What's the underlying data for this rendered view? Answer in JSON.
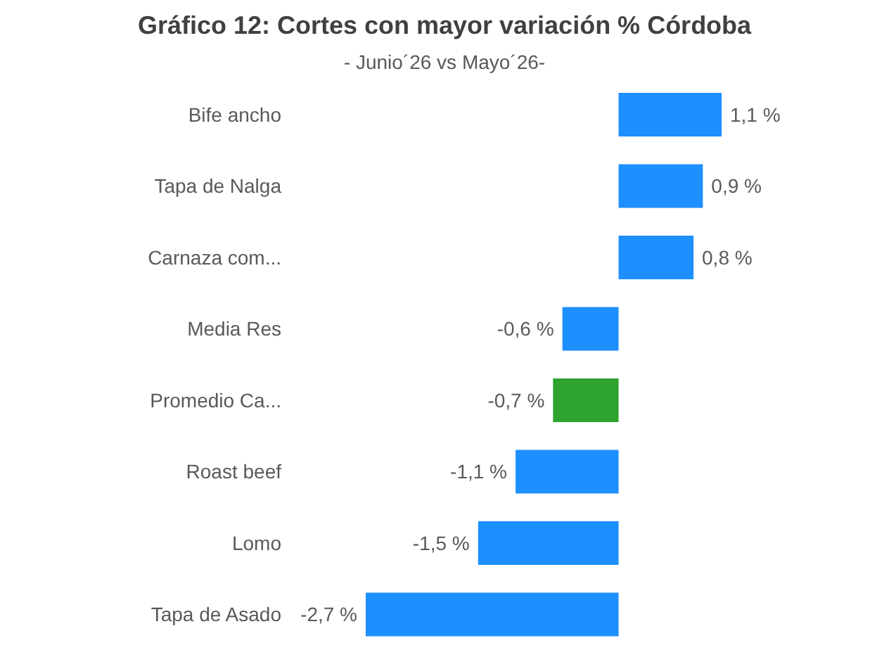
{
  "chart_data": {
    "type": "bar",
    "orientation": "horizontal",
    "title": "Gráfico 12: Cortes con mayor variación % Córdoba",
    "subtitle": "- Junio´26 vs Mayo´26-",
    "categories": [
      "Bife ancho",
      "Tapa de Nalga",
      "Carnaza com...",
      "Media Res",
      "Promedio Ca...",
      "Roast beef",
      "Lomo",
      "Tapa de Asado"
    ],
    "values": [
      1.1,
      0.9,
      0.8,
      -0.6,
      -0.7,
      -1.1,
      -1.5,
      -2.7
    ],
    "colors": [
      "#1e8fff",
      "#1e8fff",
      "#1e8fff",
      "#1e8fff",
      "#2ea32e",
      "#1e8fff",
      "#1e8fff",
      "#1e8fff"
    ],
    "value_labels": [
      "1,1 %",
      "0,9 %",
      "0,8 %",
      "-0,6 %",
      "-0,7 %",
      "-1,1 %",
      "-1,5 %",
      "-2,7 %"
    ]
  }
}
